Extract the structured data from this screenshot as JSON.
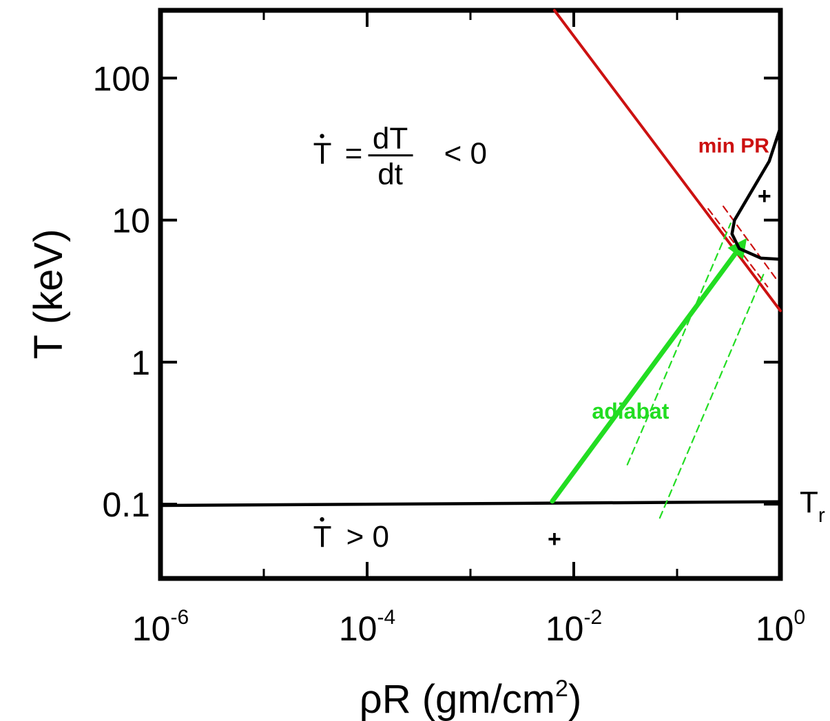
{
  "chart_data": {
    "type": "line",
    "title": "",
    "xlabel_base": "ρR (gm/cm",
    "xlabel_sup": "2",
    "xlabel_end": ")",
    "ylabel": "T (keV)",
    "xscale": "log",
    "yscale": "log",
    "xlim": [
      1e-06,
      1
    ],
    "ylim": [
      0.03,
      300
    ],
    "x_ticks": [
      {
        "value": 1e-06,
        "base": "10",
        "exp": "-6"
      },
      {
        "value": 0.0001,
        "base": "10",
        "exp": "-4"
      },
      {
        "value": 0.01,
        "base": "10",
        "exp": "-2"
      },
      {
        "value": 1,
        "base": "10",
        "exp": "0"
      }
    ],
    "x_minor_ticks": [
      1e-05,
      0.001,
      0.1
    ],
    "y_ticks": [
      {
        "value": 100,
        "label": "100"
      },
      {
        "value": 10,
        "label": "10"
      },
      {
        "value": 1,
        "label": "1"
      },
      {
        "value": 0.1,
        "label": "0.1"
      }
    ],
    "series": [
      {
        "label": "min PR",
        "color": "#cc1111",
        "style": "solid",
        "points": [
          [
            0.0065,
            300
          ],
          [
            1.0,
            2.3
          ]
        ]
      },
      {
        "color": "#cc1111",
        "style": "dashed",
        "points": [
          [
            0.2,
            12
          ],
          [
            0.75,
            3.4
          ]
        ]
      },
      {
        "color": "#cc1111",
        "style": "dashed",
        "points": [
          [
            0.28,
            12.5
          ],
          [
            0.9,
            3.9
          ]
        ]
      },
      {
        "label": "T_r",
        "color": "#000000",
        "style": "solid",
        "points": [
          [
            1e-06,
            0.098
          ],
          [
            1.0,
            0.104
          ]
        ]
      },
      {
        "label": "adiabat",
        "color": "#22dd22",
        "style": "arrow",
        "points": [
          [
            0.0062,
            0.105
          ],
          [
            0.43,
            6.8
          ]
        ]
      },
      {
        "color": "#22dd22",
        "style": "dashed",
        "points": [
          [
            0.033,
            0.19
          ],
          [
            0.33,
            9.5
          ]
        ]
      },
      {
        "color": "#22dd22",
        "style": "dashed",
        "points": [
          [
            0.068,
            0.08
          ],
          [
            0.7,
            4.3
          ]
        ]
      },
      {
        "color": "#000000",
        "style": "solid",
        "points": [
          [
            1.0,
            45
          ],
          [
            0.78,
            26
          ],
          [
            0.5,
            15
          ],
          [
            0.36,
            10
          ],
          [
            0.34,
            8
          ],
          [
            0.4,
            6.3
          ],
          [
            0.65,
            5.4
          ],
          [
            1.0,
            5.3
          ]
        ]
      }
    ],
    "annotations": [
      {
        "kind": "tdot-eq",
        "lhs": "T",
        "eq": "=",
        "num": "dT",
        "den": "dt",
        "rhs": "< 0",
        "x": 3e-05,
        "y": 25
      },
      {
        "kind": "tdot",
        "lhs": "T",
        "rhs": "> 0",
        "x": 3e-05,
        "y": 0.05
      },
      {
        "kind": "plus",
        "text": "+",
        "x": 0.0065,
        "y": 0.05
      },
      {
        "kind": "plus",
        "text": "+",
        "x": 0.7,
        "y": 13
      },
      {
        "kind": "red",
        "text": "min  PR",
        "color": "#cc1111",
        "x": 0.16,
        "y": 30
      },
      {
        "kind": "green",
        "text": "adiabat",
        "color": "#22dd22",
        "x": 0.015,
        "y": 0.4
      },
      {
        "kind": "tr",
        "text": "T",
        "sub": "r",
        "x": 1.0,
        "y": 0.1
      }
    ]
  }
}
